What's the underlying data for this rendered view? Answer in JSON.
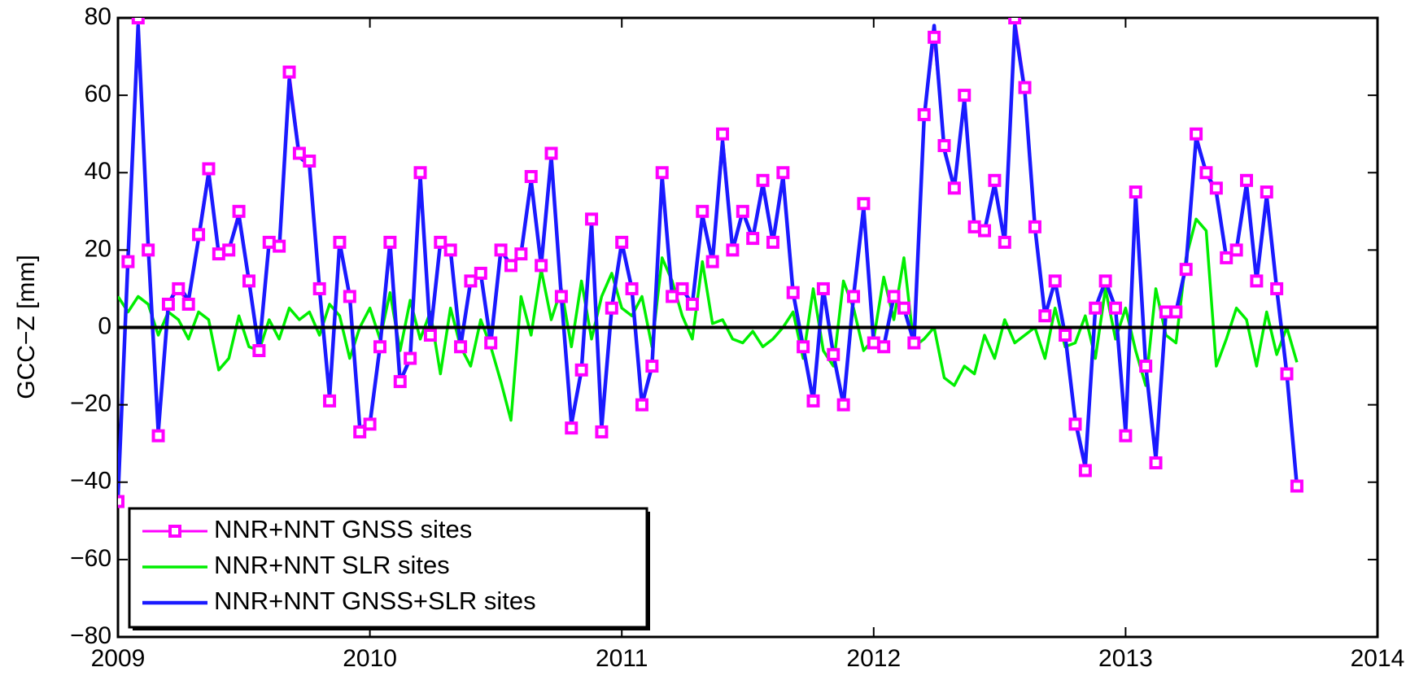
{
  "chart_data": {
    "type": "line",
    "ylabel": "GCC−Z [mm]",
    "x": [
      2009,
      2009.04,
      2009.08,
      2009.12,
      2009.16,
      2009.2,
      2009.24,
      2009.28,
      2009.32,
      2009.36,
      2009.4,
      2009.44,
      2009.48,
      2009.52,
      2009.56,
      2009.6,
      2009.64,
      2009.68,
      2009.72,
      2009.76,
      2009.8,
      2009.84,
      2009.88,
      2009.92,
      2009.96,
      2010,
      2010.04,
      2010.08,
      2010.12,
      2010.16,
      2010.2,
      2010.24,
      2010.28,
      2010.32,
      2010.36,
      2010.4,
      2010.44,
      2010.48,
      2010.52,
      2010.56,
      2010.6,
      2010.64,
      2010.68,
      2010.72,
      2010.76,
      2010.8,
      2010.84,
      2010.88,
      2010.92,
      2010.96,
      2011,
      2011.04,
      2011.08,
      2011.12,
      2011.16,
      2011.2,
      2011.24,
      2011.28,
      2011.32,
      2011.36,
      2011.4,
      2011.44,
      2011.48,
      2011.52,
      2011.56,
      2011.6,
      2011.64,
      2011.68,
      2011.72,
      2011.76,
      2011.8,
      2011.84,
      2011.88,
      2011.92,
      2011.96,
      2012,
      2012.04,
      2012.08,
      2012.12,
      2012.16,
      2012.2,
      2012.24,
      2012.28,
      2012.32,
      2012.36,
      2012.4,
      2012.44,
      2012.48,
      2012.52,
      2012.56,
      2012.6,
      2012.64,
      2012.68,
      2012.72,
      2012.76,
      2012.8,
      2012.84,
      2012.88,
      2012.92,
      2012.96,
      2013,
      2013.04,
      2013.08,
      2013.12,
      2013.16,
      2013.2,
      2013.24,
      2013.28,
      2013.32,
      2013.36,
      2013.4,
      2013.44,
      2013.48,
      2013.52,
      2013.56,
      2013.6,
      2013.64,
      2013.68
    ],
    "series": [
      {
        "name": "NNR+NNT GNSS sites",
        "color": "#ff00ff",
        "marker": "square",
        "values": [
          -45,
          17,
          80,
          20,
          -28,
          6,
          10,
          6,
          24,
          41,
          19,
          20,
          30,
          12,
          -6,
          22,
          21,
          66,
          45,
          43,
          10,
          -19,
          22,
          8,
          -27,
          -25,
          -5,
          22,
          -14,
          -8,
          40,
          -2,
          22,
          20,
          -5,
          12,
          14,
          -4,
          20,
          16,
          19,
          39,
          16,
          45,
          8,
          -26,
          -11,
          28,
          -27,
          5,
          22,
          10,
          -20,
          -10,
          40,
          8,
          10,
          6,
          30,
          17,
          50,
          20,
          30,
          23,
          38,
          22,
          40,
          9,
          -5,
          -19,
          10,
          -7,
          -20,
          8,
          32,
          -4,
          -5,
          8,
          5,
          -4,
          55,
          75,
          47,
          36,
          60,
          26,
          25,
          38,
          22,
          80,
          62,
          26,
          3,
          12,
          -2,
          -25,
          -37,
          5,
          12,
          5,
          -28,
          35,
          -10,
          -35,
          4,
          4,
          15,
          50,
          40,
          36,
          18,
          20,
          38,
          12,
          35,
          10,
          -12,
          -41
        ]
      },
      {
        "name": "NNR+NNT SLR sites",
        "color": "#00ee00",
        "values": [
          8,
          4,
          8,
          6,
          -2,
          4,
          2,
          -3,
          4,
          2,
          -11,
          -8,
          3,
          -5,
          -6,
          2,
          -3,
          5,
          2,
          4,
          -2,
          6,
          3,
          -8,
          0,
          5,
          -3,
          9,
          -6,
          7,
          -3,
          4,
          -12,
          5,
          -5,
          -10,
          2,
          -5,
          -14,
          -24,
          8,
          -2,
          15,
          2,
          10,
          -5,
          12,
          -3,
          8,
          14,
          5,
          3,
          8,
          -5,
          18,
          12,
          3,
          -3,
          17,
          1,
          2,
          -3,
          -4,
          -1,
          -5,
          -3,
          0,
          4,
          -8,
          10,
          -6,
          -10,
          12,
          5,
          -6,
          -3,
          13,
          2,
          18,
          -5,
          -3,
          0,
          -13,
          -15,
          -10,
          -12,
          -2,
          -8,
          2,
          -4,
          -2,
          0,
          -8,
          5,
          -5,
          -4,
          3,
          -8,
          10,
          -3,
          5,
          -6,
          -15,
          10,
          -2,
          -4,
          18,
          28,
          25,
          -10,
          -3,
          5,
          2,
          -10,
          4,
          -7,
          0,
          -9
        ]
      },
      {
        "name": "NNR+NNT GNSS+SLR sites",
        "color": "#1a1aff",
        "values": [
          -44,
          18,
          78,
          21,
          -27,
          6,
          11,
          7,
          23,
          40,
          19,
          20,
          29,
          12,
          -6,
          22,
          20,
          64,
          44,
          42,
          10,
          -18,
          22,
          8,
          -26,
          -25,
          -5,
          22,
          -14,
          -8,
          39,
          -2,
          22,
          20,
          -5,
          12,
          14,
          -4,
          20,
          16,
          19,
          38,
          16,
          44,
          8,
          -25,
          -11,
          27,
          -26,
          5,
          22,
          10,
          -20,
          -10,
          39,
          8,
          10,
          6,
          29,
          17,
          48,
          20,
          30,
          23,
          37,
          22,
          39,
          9,
          -5,
          -19,
          10,
          -7,
          -20,
          8,
          31,
          -4,
          -5,
          8,
          5,
          -4,
          54,
          78,
          46,
          36,
          59,
          26,
          25,
          37,
          22,
          78,
          61,
          26,
          3,
          12,
          -2,
          -24,
          -36,
          5,
          12,
          5,
          -27,
          34,
          -10,
          -34,
          4,
          4,
          16,
          49,
          40,
          35,
          18,
          20,
          37,
          12,
          34,
          10,
          -12,
          -41
        ]
      }
    ],
    "xlim": [
      2009,
      2014
    ],
    "xticks": [
      2009,
      2010,
      2011,
      2012,
      2013,
      2014
    ],
    "ylim": [
      -80,
      80
    ],
    "yticks": [
      {
        "value": -80,
        "label": "−80"
      },
      {
        "value": -60,
        "label": "−60"
      },
      {
        "value": -40,
        "label": "−40"
      },
      {
        "value": -20,
        "label": "−20"
      },
      0,
      20,
      40,
      60,
      80
    ],
    "zero_line": true,
    "grid": false,
    "legend": "lower left"
  }
}
